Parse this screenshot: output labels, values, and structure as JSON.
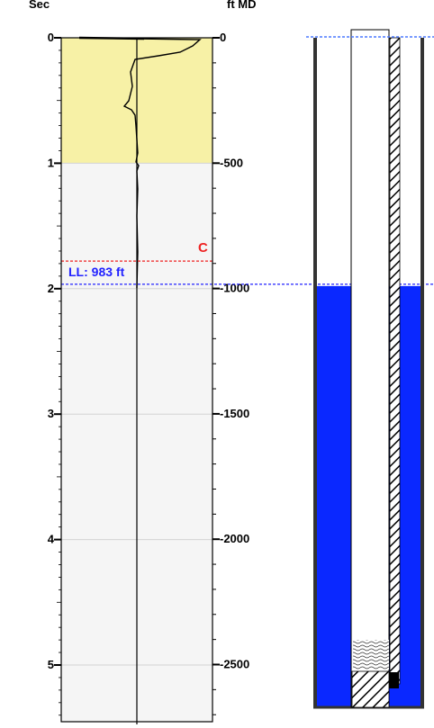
{
  "log_track": {
    "left_axis_label": "Sec",
    "right_axis_label": "ft MD",
    "sec_ticks": [
      "0",
      "1",
      "2",
      "3",
      "4",
      "5"
    ],
    "ft_ticks": [
      "0",
      "500",
      "1000",
      "1500",
      "2000",
      "2500"
    ],
    "highlight_color": "#f7f1a6",
    "background_color": "#f5f5f5",
    "liquid_level": {
      "label": "LL: 983 ft",
      "depth_ft": 983,
      "color": "#2222ff"
    },
    "collar_marker": {
      "label": "C",
      "sec": 1.78,
      "color": "#ee2222"
    },
    "highlight_range_sec": [
      0,
      1
    ],
    "sec_range": [
      0,
      5.5
    ],
    "ft_range": [
      0,
      2850
    ]
  },
  "wellbore": {
    "fluid_color": "#0a28ff",
    "fluid_top_ft": 983,
    "surface_line_color": "#4a78ff"
  }
}
